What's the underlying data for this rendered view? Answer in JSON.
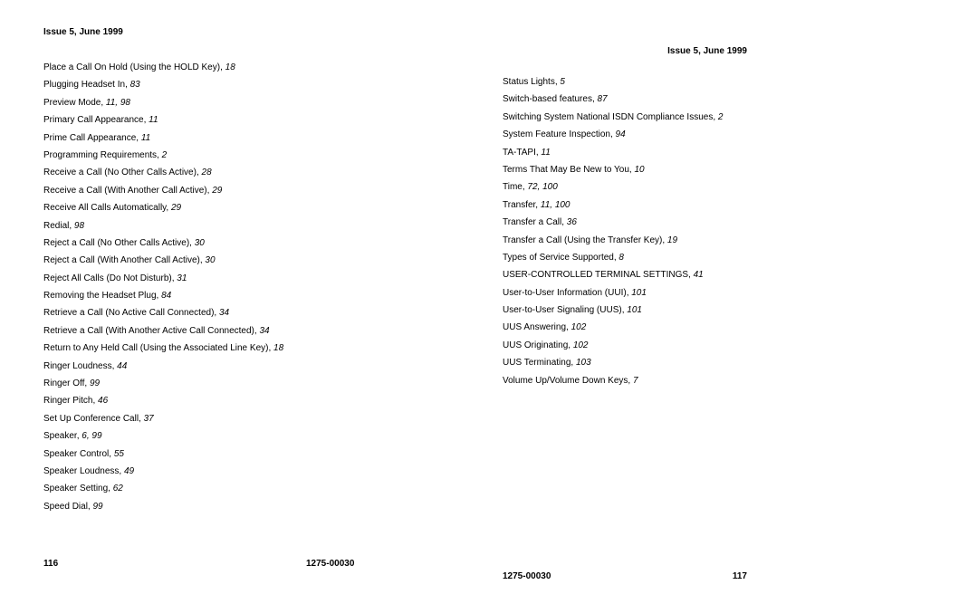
{
  "left": {
    "header": "Issue 5, June 1999",
    "entries": [
      {
        "t": "Place a Call On Hold (Using the HOLD Key), ",
        "p": "18"
      },
      {
        "t": "Plugging Headset In, ",
        "p": "83"
      },
      {
        "t": "Preview Mode, ",
        "p": "11, 98"
      },
      {
        "t": "Primary Call Appearance, ",
        "p": "11"
      },
      {
        "t": "Prime Call Appearance, ",
        "p": "11"
      },
      {
        "t": "Programming Requirements, ",
        "p": "2"
      },
      {
        "t": "Receive a Call (No Other Calls Active), ",
        "p": "28"
      },
      {
        "t": "Receive a Call (With Another Call Active), ",
        "p": "29"
      },
      {
        "t": "Receive All Calls Automatically, ",
        "p": "29"
      },
      {
        "t": "Redial, ",
        "p": "98"
      },
      {
        "t": "Reject a Call (No Other Calls Active), ",
        "p": "30"
      },
      {
        "t": "Reject a Call (With Another Call Active), ",
        "p": "30"
      },
      {
        "t": "Reject All Calls (Do Not Disturb), ",
        "p": "31"
      },
      {
        "t": "Removing the Headset Plug, ",
        "p": "84"
      },
      {
        "t": "Retrieve a Call (No Active Call Connected), ",
        "p": "34"
      },
      {
        "t": "Retrieve a Call (With Another Active Call Connected), ",
        "p": "34"
      },
      {
        "t": "Return to Any Held Call (Using the Associated Line Key), ",
        "p": "18"
      },
      {
        "t": "Ringer Loudness, ",
        "p": "44"
      },
      {
        "t": "Ringer Off, ",
        "p": "99"
      },
      {
        "t": "Ringer Pitch, ",
        "p": "46"
      },
      {
        "t": "Set Up Conference Call, ",
        "p": "37"
      },
      {
        "t": "Speaker, ",
        "p": "6, 99"
      },
      {
        "t": "Speaker Control, ",
        "p": "55"
      },
      {
        "t": "Speaker Loudness, ",
        "p": "49"
      },
      {
        "t": "Speaker Setting, ",
        "p": "62"
      },
      {
        "t": "Speed Dial, ",
        "p": "99"
      }
    ],
    "page_num": "116",
    "doc_num": "1275-00030"
  },
  "right": {
    "header": "Issue 5, June 1999",
    "entries": [
      {
        "t": "Status Lights, ",
        "p": "5"
      },
      {
        "t": "Switch-based features, ",
        "p": "87"
      },
      {
        "t": "Switching System National ISDN Compliance Issues, ",
        "p": "2"
      },
      {
        "t": "System Feature Inspection, ",
        "p": "94"
      },
      {
        "t": "TA-TAPI, ",
        "p": "11"
      },
      {
        "t": "Terms That May Be New to You, ",
        "p": "10"
      },
      {
        "t": "Time, ",
        "p": "72, 100"
      },
      {
        "t": "Transfer, ",
        "p": "11, 100"
      },
      {
        "t": "Transfer a Call, ",
        "p": "36"
      },
      {
        "t": "Transfer a Call (Using the Transfer Key), ",
        "p": "19"
      },
      {
        "t": "Types of Service Supported, ",
        "p": "8"
      },
      {
        "t": "USER-CONTROLLED TERMINAL SETTINGS, ",
        "p": "41"
      },
      {
        "t": "User-to-User Information (UUI), ",
        "p": "101"
      },
      {
        "t": "User-to-User Signaling (UUS), ",
        "p": "101"
      },
      {
        "t": "UUS Answering, ",
        "p": "102"
      },
      {
        "t": "UUS Originating, ",
        "p": "102"
      },
      {
        "t": "UUS Terminating, ",
        "p": "103"
      },
      {
        "t": "Volume Up/Volume Down Keys, ",
        "p": "7"
      }
    ],
    "page_num": "117",
    "doc_num": "1275-00030"
  }
}
